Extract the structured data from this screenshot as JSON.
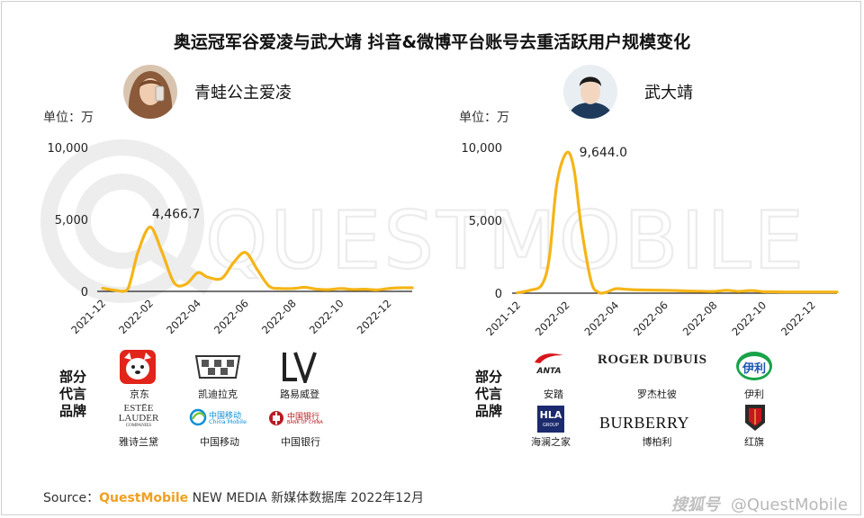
{
  "title": "奥运冠军谷爱凌与武大靖 抖音&微博平台账号去重活跃用户规模变化",
  "watermark": "QUESTMOBILE",
  "colors": {
    "line": "#f5b518",
    "axis": "#222222",
    "qm_orange": "#f0a020"
  },
  "left": {
    "name": "青蛙公主爱凌",
    "unit": "单位：万",
    "brands_heading": [
      "部分",
      "代言",
      "品牌"
    ],
    "brands": [
      {
        "name": "京东",
        "logo": "jd-dog-logo"
      },
      {
        "name": "凯迪拉克",
        "logo": "cadillac-crest-logo"
      },
      {
        "name": "路易威登",
        "logo": "louis-vuitton-lv-logo"
      },
      {
        "name": "雅诗兰黛",
        "logo": "estee-lauder-logo",
        "logo_text": [
          "ESTĒE",
          "LAUDER",
          "COMPANIES"
        ]
      },
      {
        "name": "中国移动",
        "logo": "china-mobile-logo",
        "logo_text": [
          "中国移动",
          "China Mobile"
        ]
      },
      {
        "name": "中国银行",
        "logo": "bank-of-china-logo",
        "logo_text": [
          "中国银行",
          "BANK OF CHINA"
        ]
      }
    ]
  },
  "right": {
    "name": "武大靖",
    "unit": "单位：万",
    "brands_heading": [
      "部分",
      "代言",
      "品牌"
    ],
    "brands": [
      {
        "name": "安踏",
        "logo": "anta-logo",
        "logo_text": "ANTA"
      },
      {
        "name": "罗杰杜彼",
        "logo": "roger-dubuis-logo",
        "logo_text": "ROGER DUBUIS"
      },
      {
        "name": "伊利",
        "logo": "yili-logo",
        "logo_text": "伊利"
      },
      {
        "name": "海澜之家",
        "logo": "hla-logo",
        "logo_text": [
          "HLA",
          "GROUP"
        ]
      },
      {
        "name": "博柏利",
        "logo": "burberry-logo",
        "logo_text": "BURBERRY"
      },
      {
        "name": "红旗",
        "logo": "hongqi-logo"
      }
    ]
  },
  "chart_data": [
    {
      "type": "line",
      "series": [
        {
          "x": [
            0,
            0.5,
            1,
            1.2,
            1.5,
            2,
            2.5,
            3,
            3.5,
            4,
            4.4,
            5,
            5.5,
            6,
            6.5,
            7,
            7.5,
            8,
            8.5,
            9,
            9.5,
            10,
            10.5,
            11,
            11.5,
            12,
            12.5,
            13
          ],
          "values": [
            220,
            80,
            60,
            900,
            2800,
            4466.7,
            2700,
            600,
            500,
            1300,
            1000,
            900,
            2000,
            2700,
            1500,
            350,
            200,
            200,
            280,
            150,
            120,
            200,
            130,
            150,
            100,
            200,
            250,
            250
          ]
        }
      ],
      "xticks": [
        "2021-12",
        "2022-02",
        "2022-04",
        "2022-06",
        "2022-08",
        "2022-10",
        "2022-12"
      ],
      "xtick_pos": [
        0,
        2,
        4,
        6,
        8,
        10,
        12
      ],
      "yticks": [
        "0",
        "5,000",
        "10,000"
      ],
      "ytick_vals": [
        0,
        5000,
        10000
      ],
      "ylim": [
        0,
        10000
      ],
      "xlim": [
        0,
        13
      ],
      "annotation": {
        "x": 2,
        "value": 4466.7,
        "text": "4,466.7"
      },
      "ylabel": "单位：万",
      "legend": "none",
      "grid": false
    },
    {
      "type": "line",
      "series": [
        {
          "x": [
            0,
            0.5,
            1,
            1.3,
            1.6,
            2,
            2.3,
            2.6,
            3,
            3.3,
            3.6,
            4,
            4.5,
            5,
            6,
            7,
            8,
            8.5,
            9,
            9.5,
            10,
            10.5,
            11,
            11.5,
            12,
            12.5,
            13
          ],
          "values": [
            30,
            200,
            600,
            2500,
            7500,
            9644,
            8500,
            4500,
            800,
            60,
            60,
            300,
            250,
            220,
            200,
            150,
            120,
            200,
            120,
            180,
            100,
            90,
            80,
            80,
            80,
            80,
            80
          ]
        }
      ],
      "xticks": [
        "2021-12",
        "2022-02",
        "2022-04",
        "2022-06",
        "2022-08",
        "2022-10",
        "2022-12"
      ],
      "xtick_pos": [
        0,
        2,
        4,
        6,
        8,
        10,
        12
      ],
      "yticks": [
        "0",
        "5,000",
        "10,000"
      ],
      "ytick_vals": [
        0,
        5000,
        10000
      ],
      "ylim": [
        0,
        10000
      ],
      "xlim": [
        0,
        13
      ],
      "annotation": {
        "x": 2,
        "value": 9644,
        "text": "9,644.0"
      },
      "ylabel": "单位：万",
      "legend": "none",
      "grid": false
    }
  ],
  "source": {
    "prefix": "Source：",
    "brand": "QuestMobile",
    "rest": " NEW MEDIA 新媒体数据库 2022年12月"
  },
  "footer_watermark": {
    "platform": "搜狐号",
    "account": "@QuestMobile"
  }
}
